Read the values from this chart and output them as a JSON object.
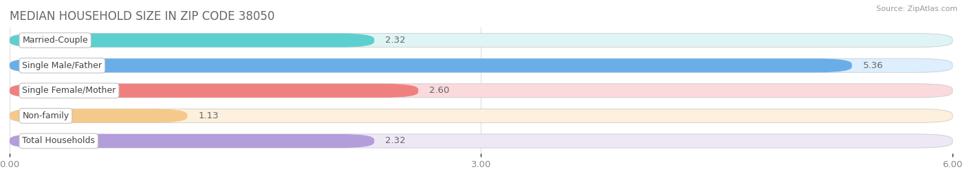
{
  "title": "MEDIAN HOUSEHOLD SIZE IN ZIP CODE 38050",
  "source": "Source: ZipAtlas.com",
  "categories": [
    "Married-Couple",
    "Single Male/Father",
    "Single Female/Mother",
    "Non-family",
    "Total Households"
  ],
  "values": [
    2.32,
    5.36,
    2.6,
    1.13,
    2.32
  ],
  "bar_colors": [
    "#5ECFCF",
    "#6AAEE8",
    "#F08080",
    "#F5C98A",
    "#B39DDB"
  ],
  "bar_bg_colors": [
    "#DFF4F4",
    "#DDEEFF",
    "#FADADD",
    "#FDF0DC",
    "#EDE7F6"
  ],
  "xlim": [
    0,
    6.0
  ],
  "xticks": [
    0.0,
    3.0,
    6.0
  ],
  "xtick_labels": [
    "0.00",
    "3.00",
    "6.00"
  ],
  "title_fontsize": 12,
  "tick_fontsize": 9.5,
  "bar_label_fontsize": 9.5,
  "category_fontsize": 9,
  "background_color": "#FFFFFF",
  "grid_color": "#DDDDDD"
}
